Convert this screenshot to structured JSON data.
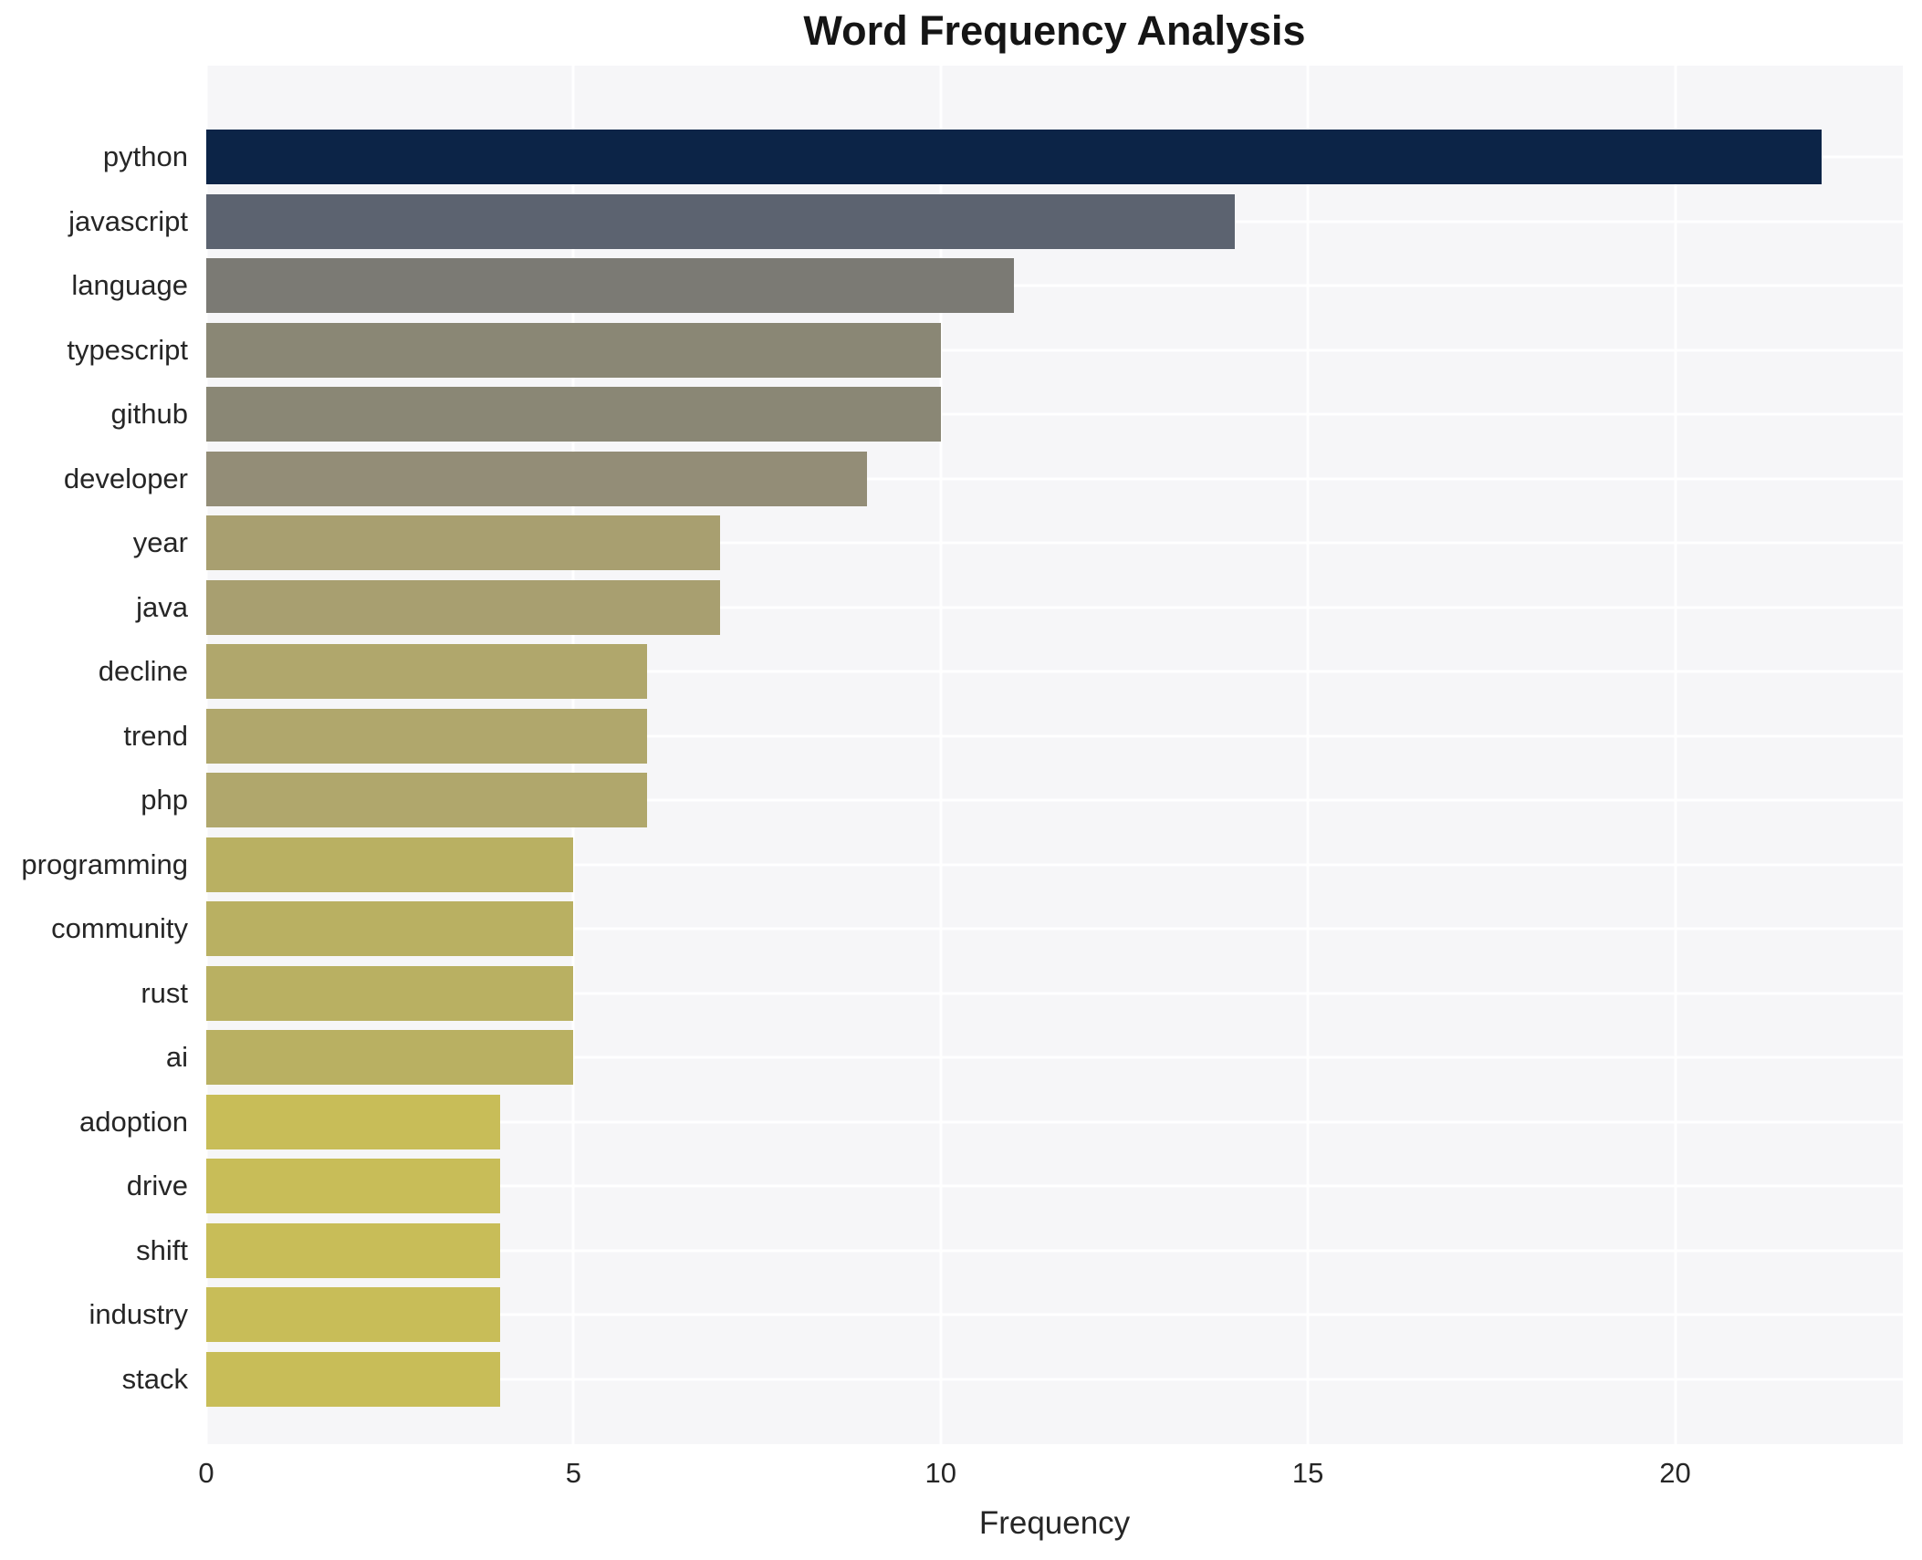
{
  "title": "Word Frequency Analysis",
  "chart_data": {
    "type": "bar",
    "orientation": "horizontal",
    "title": "Word Frequency Analysis",
    "xlabel": "Frequency",
    "ylabel": "",
    "grid": true,
    "legend": false,
    "plot_background": "#f6f6f8",
    "grid_color": "#ffffff",
    "xlim": [
      0,
      23.1
    ],
    "xticks": [
      0,
      5,
      10,
      15,
      20
    ],
    "categories": [
      "python",
      "javascript",
      "language",
      "typescript",
      "github",
      "developer",
      "year",
      "java",
      "decline",
      "trend",
      "php",
      "programming",
      "community",
      "rust",
      "ai",
      "adoption",
      "drive",
      "shift",
      "industry",
      "stack"
    ],
    "values": [
      22,
      14,
      11,
      10,
      10,
      9,
      7,
      7,
      6,
      6,
      6,
      5,
      5,
      5,
      5,
      4,
      4,
      4,
      4,
      4
    ],
    "bar_colors": [
      "#0c2447",
      "#5c6370",
      "#7b7a74",
      "#8a8775",
      "#8a8775",
      "#938d77",
      "#a89f70",
      "#a89f70",
      "#b0a76c",
      "#b0a76c",
      "#b0a76c",
      "#b9b062",
      "#b9b062",
      "#b9b062",
      "#b9b062",
      "#c8bd58",
      "#c8bd58",
      "#c8bd58",
      "#c8bd58",
      "#c8bd58"
    ]
  }
}
